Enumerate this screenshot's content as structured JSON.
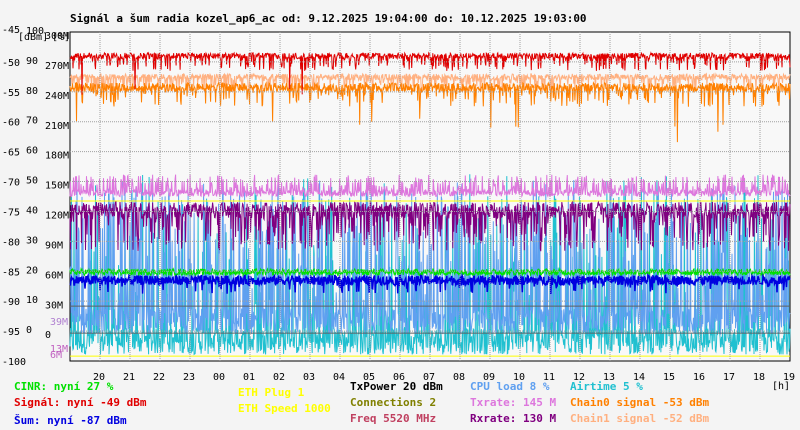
{
  "chart_data": {
    "type": "line",
    "title": "Signál a šum radia kozel_ap6_ac od: 9.12.2025 19:04:00 do: 10.12.2025 19:03:00",
    "ylabel_left": "[dBm]",
    "ylabel_right": "[%]",
    "xlabel": "[h]",
    "y_dbm_ticks": [
      "-45",
      "-50",
      "-55",
      "-60",
      "-65",
      "-70",
      "-75",
      "-80",
      "-85",
      "-90",
      "-95",
      "-100"
    ],
    "y_pct_ticks": [
      "100",
      "90",
      "80",
      "70",
      "60",
      "50",
      "40",
      "30",
      "20",
      "10",
      "0"
    ],
    "y_rate_ticks": [
      "300M",
      "270M",
      "240M",
      "210M",
      "180M",
      "150M",
      "120M",
      "90M",
      "60M",
      "30M",
      "0"
    ],
    "y_rate_extra": [
      "39M",
      "13M",
      "6M"
    ],
    "x_ticks": [
      "20",
      "21",
      "22",
      "23",
      "00",
      "01",
      "02",
      "03",
      "04",
      "05",
      "06",
      "07",
      "08",
      "09",
      "10",
      "11",
      "12",
      "13",
      "14",
      "15",
      "16",
      "17",
      "18",
      "19"
    ],
    "ylim_dbm": [
      -100,
      -45
    ],
    "grid": true,
    "series": [
      {
        "name": "Signál",
        "color": "#e00000",
        "typical_dbm": -49
      },
      {
        "name": "Chain0 signal",
        "color": "#ff8000",
        "typical_dbm": -53
      },
      {
        "name": "Chain1 signal",
        "color": "#ffb080",
        "typical_dbm": -52
      },
      {
        "name": "Txrate",
        "color": "#dd77dd",
        "typical_mbit": 145
      },
      {
        "name": "Rxrate",
        "color": "#800080",
        "typical_mbit": 130
      },
      {
        "name": "Šum",
        "color": "#0000e0",
        "typical_dbm": -87
      },
      {
        "name": "CPU load",
        "color": "#60a0f0",
        "typical_pct": 8
      },
      {
        "name": "Airtime",
        "color": "#20c0d0",
        "typical_pct": 5
      },
      {
        "name": "CINR",
        "color": "#00e000",
        "typical_pct": 27
      },
      {
        "name": "ETH Speed",
        "color": "#ffff00",
        "typical": 1000
      }
    ],
    "legend": {
      "col1": [
        {
          "text": "CINR: nyní 27 %",
          "color": "#00e000"
        },
        {
          "text": "Signál: nyní -49 dBm",
          "color": "#e00000"
        },
        {
          "text": "Šum: nyní -87 dBm",
          "color": "#0000e0"
        }
      ],
      "col2": [
        {
          "text": "ETH Plug 1",
          "color": "#ffff00"
        },
        {
          "text": "ETH Speed 1000",
          "color": "#ffff00"
        }
      ],
      "col3": [
        {
          "text": "TxPower 20 dBm",
          "color": "#000000"
        },
        {
          "text": "Connections 2",
          "color": "#808000"
        },
        {
          "text": "Freq 5520 MHz",
          "color": "#c04060"
        }
      ],
      "col4": [
        {
          "text": "CPU load 8 %",
          "color": "#60a0f0"
        },
        {
          "text": "Txrate: 145 M",
          "color": "#dd77dd"
        },
        {
          "text": "Rxrate: 130 M",
          "color": "#800080"
        }
      ],
      "col5": [
        {
          "text": "Airtime 5 %",
          "color": "#20c0d0"
        },
        {
          "text": "Chain0 signal -53 dBm",
          "color": "#ff8000"
        },
        {
          "text": "Chain1 signal -52 dBm",
          "color": "#ffb080"
        }
      ]
    }
  }
}
